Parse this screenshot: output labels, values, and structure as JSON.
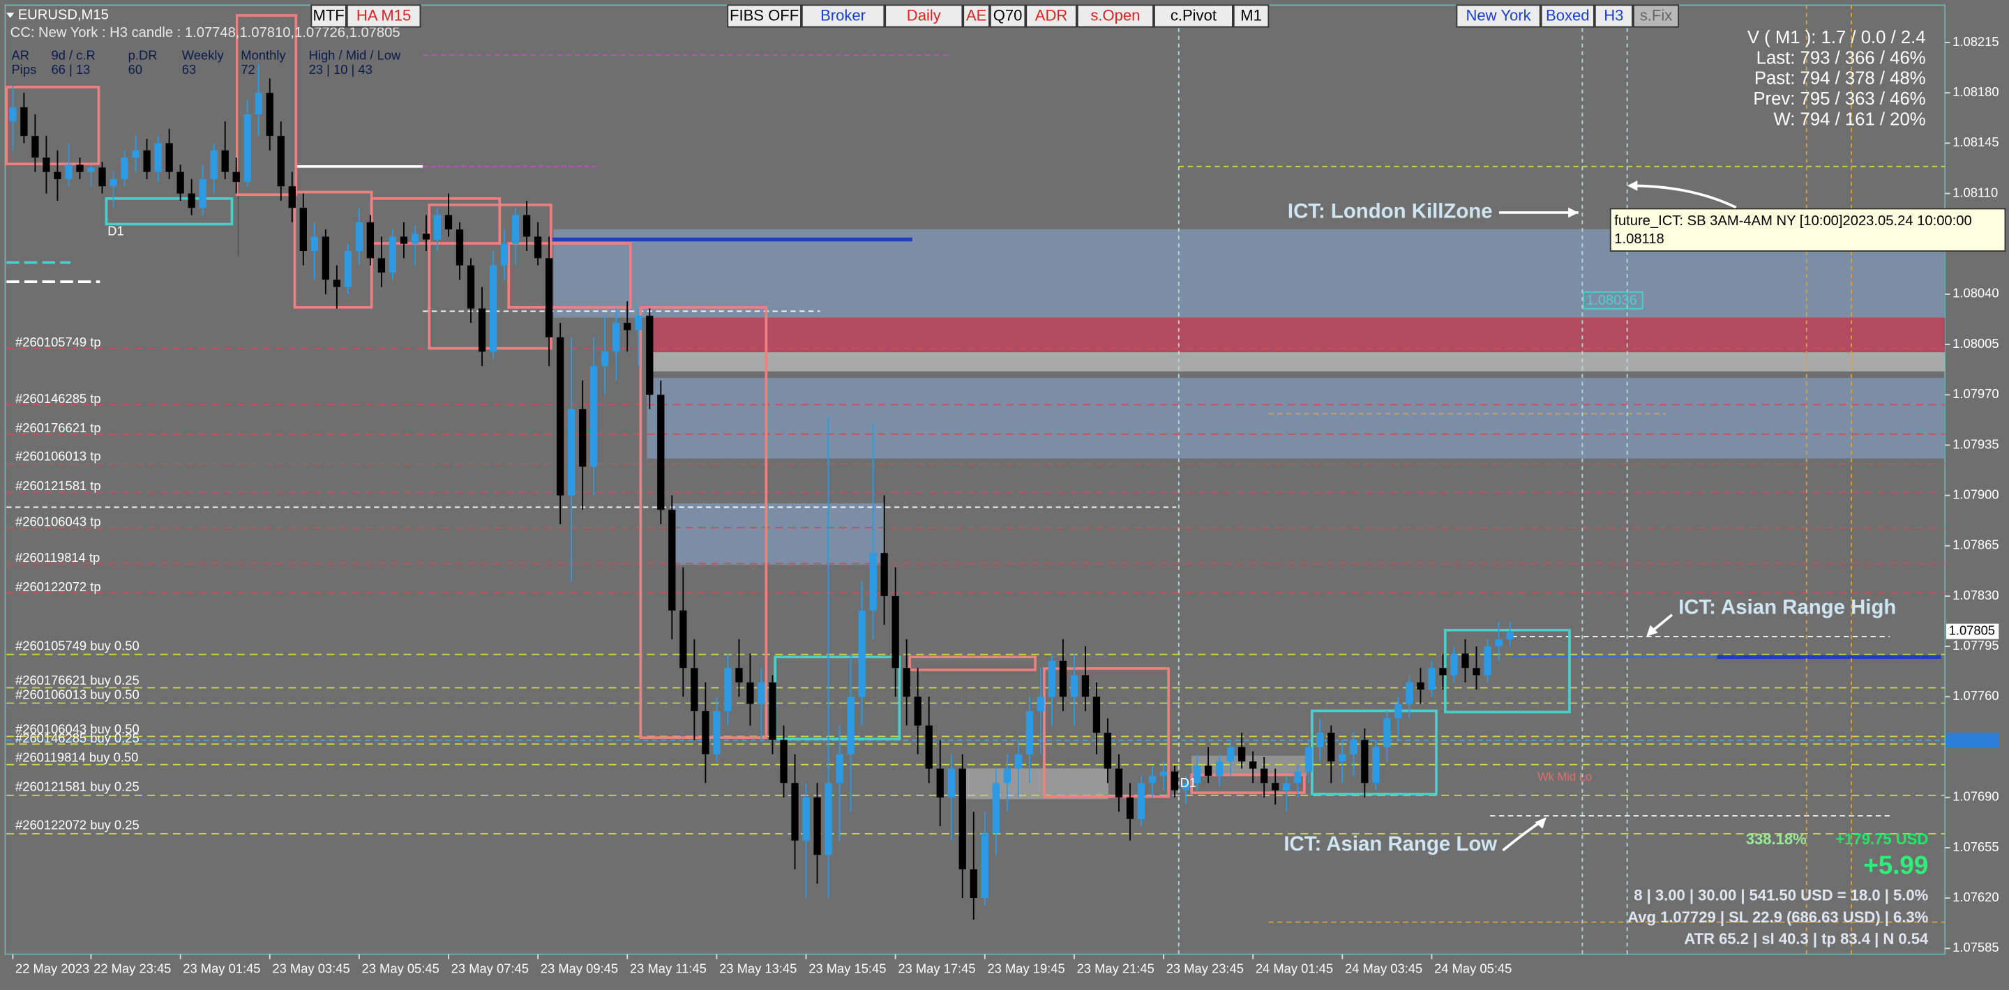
{
  "header": {
    "symbol": "EURUSD,M15",
    "subtitle": "CC: New York : H3 candle : 1.07748,1.07810,1.07726,1.07805"
  },
  "toolbar": [
    "MTF",
    "HA M15",
    "FIBS OFF",
    "Broker",
    "Daily",
    "AE",
    "Q70",
    "ADR",
    "s.Open",
    "c.Pivot",
    "M1",
    "New York",
    "Boxed",
    "H3",
    "s.Fix"
  ],
  "stats": {
    "rows": [
      [
        "AR",
        "9d / c.R",
        "p.DR",
        "Weekly",
        "Monthly",
        "High / Mid / Low"
      ],
      [
        "Pips",
        "66 | 13",
        "60",
        "63",
        "72",
        "23 | 10 | 43"
      ]
    ]
  },
  "info": [
    "V ( M1 ): 1.7 / 0.0 / 2.4",
    "Last: 793 / 366 / 46%",
    "Past: 794 / 378 / 48%",
    "Prev: 795 / 363 / 46%",
    "W: 794 / 161 / 20%"
  ],
  "orders": {
    "tp": [
      "#260105749 tp",
      "#260146285 tp",
      "#260176621 tp",
      "#260106013 tp",
      "#260121581 tp",
      "#260106043 tp",
      "#260119814 tp",
      "#260122072 tp"
    ],
    "buy": [
      "#260105749 buy 0.50",
      "#260176621 buy 0.25",
      "#260106013 buy 0.50",
      "#260106043 buy 0.50",
      "#260146285 buy 0.25",
      "#260119814 buy 0.50",
      "#260121581 buy 0.25",
      "#260122072 buy 0.25"
    ]
  },
  "annotations": {
    "london": "ICT: London KillZone",
    "asian_high": "ICT: Asian Range High",
    "asian_low": "ICT: Asian Range Low",
    "d1a": "D1",
    "d1b": "D1",
    "wk": "Wk Mid Lo",
    "level": "1.08036"
  },
  "tooltip": [
    "future_ICT: SB 3AM-4AM NY [10:00]2023.05.24 10:00:00",
    "1.08118"
  ],
  "results": {
    "pct": "338.18%",
    "usd": "+179.75 USD",
    "pips": "+5.99",
    "lines": [
      "8  |  3.00  |  30.00  |  541.50 USD = 18.0  |  5.0%",
      "Avg 1.07729  |  SL 22.9 (686.63 USD)  |  6.3%",
      "ATR 65.2  |  sl 40.3  |  tp 83.4  |  N 0.54"
    ]
  },
  "price_labels": [
    "1.07805"
  ],
  "chart_data": {
    "type": "candlestick",
    "bull_color": "#2b9be6",
    "bear_color": "#000000",
    "ylim": [
      1.07581,
      1.08241
    ],
    "yticks": [
      1.08215,
      {
        "value": 1.0818,
        "label": "1.08180"
      },
      1.08145,
      {
        "value": 1.0811,
        "label": "1.08110"
      },
      {
        "value": 1.0804,
        "label": "1.08040"
      },
      1.08005,
      {
        "value": 1.0797,
        "label": "1.07970"
      },
      1.07935,
      {
        "value": 1.079,
        "label": "1.07900"
      },
      1.07865,
      {
        "value": 1.0783,
        "label": "1.07830"
      },
      1.07795,
      {
        "value": 1.0776,
        "label": "1.07760"
      },
      {
        "value": 1.0769,
        "label": "1.07690"
      },
      1.07655,
      {
        "value": 1.0762,
        "label": "1.07620"
      },
      1.07585
    ],
    "categories": [
      "22 May 2023",
      null,
      null,
      null,
      null,
      null,
      null,
      "22 May 23:45",
      null,
      null,
      null,
      null,
      null,
      null,
      null,
      "23 May 01:45",
      null,
      null,
      null,
      null,
      null,
      null,
      null,
      "23 May 03:45",
      null,
      null,
      null,
      null,
      null,
      null,
      null,
      "23 May 05:45",
      null,
      null,
      null,
      null,
      null,
      null,
      null,
      "23 May 07:45",
      null,
      null,
      null,
      null,
      null,
      null,
      null,
      "23 May 09:45",
      null,
      null,
      null,
      null,
      null,
      null,
      null,
      "23 May 11:45",
      null,
      null,
      null,
      null,
      null,
      null,
      null,
      "23 May 13:45",
      null,
      null,
      null,
      null,
      null,
      null,
      null,
      "23 May 15:45",
      null,
      null,
      null,
      null,
      null,
      null,
      null,
      "23 May 17:45",
      null,
      null,
      null,
      null,
      null,
      null,
      null,
      "23 May 19:45",
      null,
      null,
      null,
      null,
      null,
      null,
      null,
      "23 May 21:45",
      null,
      null,
      null,
      null,
      null,
      null,
      null,
      "23 May 23:45",
      null,
      null,
      null,
      null,
      null,
      null,
      null,
      "24 May 01:45",
      null,
      null,
      null,
      null,
      null,
      null,
      null,
      "24 May 03:45",
      null,
      null,
      null,
      null,
      null,
      null,
      null,
      "24 May 05:45",
      null,
      null,
      null,
      null,
      null,
      null,
      null
    ],
    "ohlc": [
      [
        1.0816,
        1.08185,
        1.0814,
        1.0817
      ],
      [
        1.0817,
        1.0818,
        1.08145,
        1.0815
      ],
      [
        1.0815,
        1.08165,
        1.08125,
        1.08135
      ],
      [
        1.08135,
        1.0815,
        1.0811,
        1.08125
      ],
      [
        1.08125,
        1.0814,
        1.08105,
        1.0812
      ],
      [
        1.0812,
        1.08145,
        1.08115,
        1.0813
      ],
      [
        1.0813,
        1.08135,
        1.0812,
        1.08125
      ],
      [
        1.08125,
        1.0813,
        1.08115,
        1.08128
      ],
      [
        1.08128,
        1.08132,
        1.0811,
        1.08115
      ],
      [
        1.08115,
        1.08125,
        1.081,
        1.0812
      ],
      [
        1.0812,
        1.0814,
        1.08115,
        1.08135
      ],
      [
        1.08135,
        1.0815,
        1.08125,
        1.0814
      ],
      [
        1.0814,
        1.08148,
        1.0812,
        1.08125
      ],
      [
        1.08125,
        1.0815,
        1.08118,
        1.08145
      ],
      [
        1.08145,
        1.08155,
        1.0812,
        1.08125
      ],
      [
        1.08125,
        1.0813,
        1.08105,
        1.0811
      ],
      [
        1.0811,
        1.0812,
        1.08095,
        1.081
      ],
      [
        1.081,
        1.0813,
        1.08095,
        1.0812
      ],
      [
        1.0812,
        1.08145,
        1.0811,
        1.0814
      ],
      [
        1.0814,
        1.0816,
        1.0812,
        1.08125
      ],
      [
        1.08125,
        1.08135,
        1.0811,
        1.08118
      ],
      [
        1.08118,
        1.08175,
        1.08115,
        1.08165
      ],
      [
        1.08165,
        1.082,
        1.0815,
        1.0818
      ],
      [
        1.0818,
        1.0819,
        1.0814,
        1.0815
      ],
      [
        1.0815,
        1.0816,
        1.08105,
        1.08115
      ],
      [
        1.08115,
        1.08125,
        1.0809,
        1.081
      ],
      [
        1.081,
        1.0811,
        1.0806,
        1.0807
      ],
      [
        1.0807,
        1.0809,
        1.0805,
        1.0808
      ],
      [
        1.0808,
        1.08085,
        1.0804,
        1.0805
      ],
      [
        1.0805,
        1.0806,
        1.0803,
        1.08045
      ],
      [
        1.08045,
        1.08075,
        1.0804,
        1.0807
      ],
      [
        1.0807,
        1.081,
        1.0806,
        1.0809
      ],
      [
        1.0809,
        1.08095,
        1.0806,
        1.08065
      ],
      [
        1.08065,
        1.0808,
        1.08045,
        1.08055
      ],
      [
        1.08055,
        1.08085,
        1.0805,
        1.0808
      ],
      [
        1.0808,
        1.0809,
        1.08065,
        1.08075
      ],
      [
        1.08075,
        1.08088,
        1.0806,
        1.08082
      ],
      [
        1.08082,
        1.08095,
        1.0807,
        1.08078
      ],
      [
        1.08078,
        1.081,
        1.0807,
        1.08095
      ],
      [
        1.08095,
        1.0811,
        1.0808,
        1.08085
      ],
      [
        1.08085,
        1.0809,
        1.0805,
        1.0806
      ],
      [
        1.0806,
        1.08065,
        1.0802,
        1.0803
      ],
      [
        1.0803,
        1.08045,
        1.0799,
        1.08
      ],
      [
        1.08,
        1.0807,
        1.07995,
        1.0806
      ],
      [
        1.0806,
        1.08085,
        1.0805,
        1.08075
      ],
      [
        1.08075,
        1.081,
        1.0806,
        1.08095
      ],
      [
        1.08095,
        1.08105,
        1.0807,
        1.0808
      ],
      [
        1.0808,
        1.0809,
        1.0806,
        1.08065
      ],
      [
        1.08065,
        1.0808,
        1.0799,
        1.0801
      ],
      [
        1.0801,
        1.0802,
        1.0788,
        1.079
      ],
      [
        1.079,
        1.0801,
        1.0784,
        1.0796
      ],
      [
        1.0796,
        1.0798,
        1.0789,
        1.0792
      ],
      [
        1.0792,
        1.0801,
        1.079,
        1.0799
      ],
      [
        1.0799,
        1.08025,
        1.0797,
        1.08
      ],
      [
        1.08,
        1.0803,
        1.0798,
        1.0802
      ],
      [
        1.0802,
        1.08035,
        1.08,
        1.08015
      ],
      [
        1.08015,
        1.0803,
        1.0799,
        1.08025
      ],
      [
        1.08025,
        1.0803,
        1.0796,
        1.0797
      ],
      [
        1.0797,
        1.0798,
        1.0788,
        1.0789
      ],
      [
        1.0789,
        1.079,
        1.078,
        1.0782
      ],
      [
        1.0782,
        1.0785,
        1.0776,
        1.0778
      ],
      [
        1.0778,
        1.078,
        1.0773,
        1.0775
      ],
      [
        1.0775,
        1.0777,
        1.077,
        1.0772
      ],
      [
        1.0772,
        1.0776,
        1.07715,
        1.0775
      ],
      [
        1.0775,
        1.0779,
        1.0774,
        1.0778
      ],
      [
        1.0778,
        1.078,
        1.0776,
        1.0777
      ],
      [
        1.0777,
        1.0779,
        1.0774,
        1.07755
      ],
      [
        1.07755,
        1.0778,
        1.0773,
        1.0777
      ],
      [
        1.0777,
        1.07775,
        1.0772,
        1.0773
      ],
      [
        1.0773,
        1.0774,
        1.0769,
        1.077
      ],
      [
        1.077,
        1.0772,
        1.0764,
        1.0766
      ],
      [
        1.0766,
        1.077,
        1.0762,
        1.0769
      ],
      [
        1.0769,
        1.077,
        1.0763,
        1.0765
      ],
      [
        1.0765,
        1.07955,
        1.0762,
        1.077
      ],
      [
        1.077,
        1.0774,
        1.0766,
        1.0772
      ],
      [
        1.0772,
        1.0779,
        1.0768,
        1.0776
      ],
      [
        1.0776,
        1.0784,
        1.0774,
        1.0782
      ],
      [
        1.0782,
        1.0795,
        1.078,
        1.0786
      ],
      [
        1.0786,
        1.079,
        1.0781,
        1.0783
      ],
      [
        1.0783,
        1.0785,
        1.0776,
        1.0778
      ],
      [
        1.0778,
        1.078,
        1.0774,
        1.0776
      ],
      [
        1.0776,
        1.0778,
        1.0772,
        1.0774
      ],
      [
        1.0774,
        1.0776,
        1.077,
        1.0771
      ],
      [
        1.0771,
        1.0773,
        1.0767,
        1.0769
      ],
      [
        1.0769,
        1.0772,
        1.0766,
        1.0771
      ],
      [
        1.0771,
        1.0772,
        1.0762,
        1.0764
      ],
      [
        1.0764,
        1.0768,
        1.07605,
        1.0762
      ],
      [
        1.0762,
        1.0768,
        1.07615,
        1.07665
      ],
      [
        1.07665,
        1.0771,
        1.0765,
        1.077
      ],
      [
        1.077,
        1.0772,
        1.0768,
        1.0771
      ],
      [
        1.0771,
        1.0773,
        1.0769,
        1.0772
      ],
      [
        1.0772,
        1.0776,
        1.077,
        1.0775
      ],
      [
        1.0775,
        1.0778,
        1.0772,
        1.0776
      ],
      [
        1.0776,
        1.0779,
        1.0774,
        1.07785
      ],
      [
        1.07785,
        1.078,
        1.0775,
        1.0776
      ],
      [
        1.0776,
        1.0779,
        1.0774,
        1.07775
      ],
      [
        1.07775,
        1.07795,
        1.0775,
        1.0776
      ],
      [
        1.0776,
        1.0777,
        1.0772,
        1.07735
      ],
      [
        1.07735,
        1.07745,
        1.077,
        1.0771
      ],
      [
        1.0771,
        1.0772,
        1.0768,
        1.0769
      ],
      [
        1.0769,
        1.077,
        1.0766,
        1.07675
      ],
      [
        1.07675,
        1.07705,
        1.0767,
        1.077
      ],
      [
        1.077,
        1.07712,
        1.0769,
        1.07705
      ],
      [
        1.07705,
        1.07715,
        1.07695,
        1.07708
      ],
      [
        1.07708,
        1.07712,
        1.0769,
        1.07695
      ],
      [
        1.07695,
        1.07705,
        1.07685,
        1.077
      ],
      [
        1.077,
        1.0772,
        1.07695,
        1.07712
      ],
      [
        1.07712,
        1.07725,
        1.077,
        1.07705
      ],
      [
        1.07705,
        1.0772,
        1.07698,
        1.07715
      ],
      [
        1.07715,
        1.0773,
        1.07705,
        1.07725
      ],
      [
        1.07725,
        1.07735,
        1.0771,
        1.07715
      ],
      [
        1.07715,
        1.07722,
        1.077,
        1.0771
      ],
      [
        1.0771,
        1.07718,
        1.0769,
        1.077
      ],
      [
        1.077,
        1.0771,
        1.07685,
        1.07695
      ],
      [
        1.07695,
        1.07705,
        1.0768,
        1.077
      ],
      [
        1.077,
        1.07712,
        1.0769,
        1.07708
      ],
      [
        1.07708,
        1.0773,
        1.077,
        1.07725
      ],
      [
        1.07725,
        1.07745,
        1.07715,
        1.07735
      ],
      [
        1.07735,
        1.0774,
        1.077,
        1.07715
      ],
      [
        1.07715,
        1.0773,
        1.077,
        1.0772
      ],
      [
        1.0772,
        1.07735,
        1.07705,
        1.0773
      ],
      [
        1.0773,
        1.07738,
        1.0769,
        1.077
      ],
      [
        1.077,
        1.0773,
        1.07695,
        1.07725
      ],
      [
        1.07725,
        1.0775,
        1.07715,
        1.07745
      ],
      [
        1.07745,
        1.0776,
        1.0773,
        1.07755
      ],
      [
        1.07755,
        1.07775,
        1.07745,
        1.0777
      ],
      [
        1.0777,
        1.0778,
        1.07755,
        1.07765
      ],
      [
        1.07765,
        1.07785,
        1.0776,
        1.0778
      ],
      [
        1.0778,
        1.0779,
        1.07765,
        1.07775
      ],
      [
        1.07775,
        1.07795,
        1.0777,
        1.0779
      ],
      [
        1.0779,
        1.078,
        1.0777,
        1.0778
      ],
      [
        1.0778,
        1.07795,
        1.07765,
        1.07775
      ],
      [
        1.07775,
        1.078,
        1.0777,
        1.07795
      ],
      [
        1.07795,
        1.07812,
        1.07785,
        1.078
      ],
      [
        1.078,
        1.07812,
        1.07795,
        1.07805
      ]
    ]
  }
}
